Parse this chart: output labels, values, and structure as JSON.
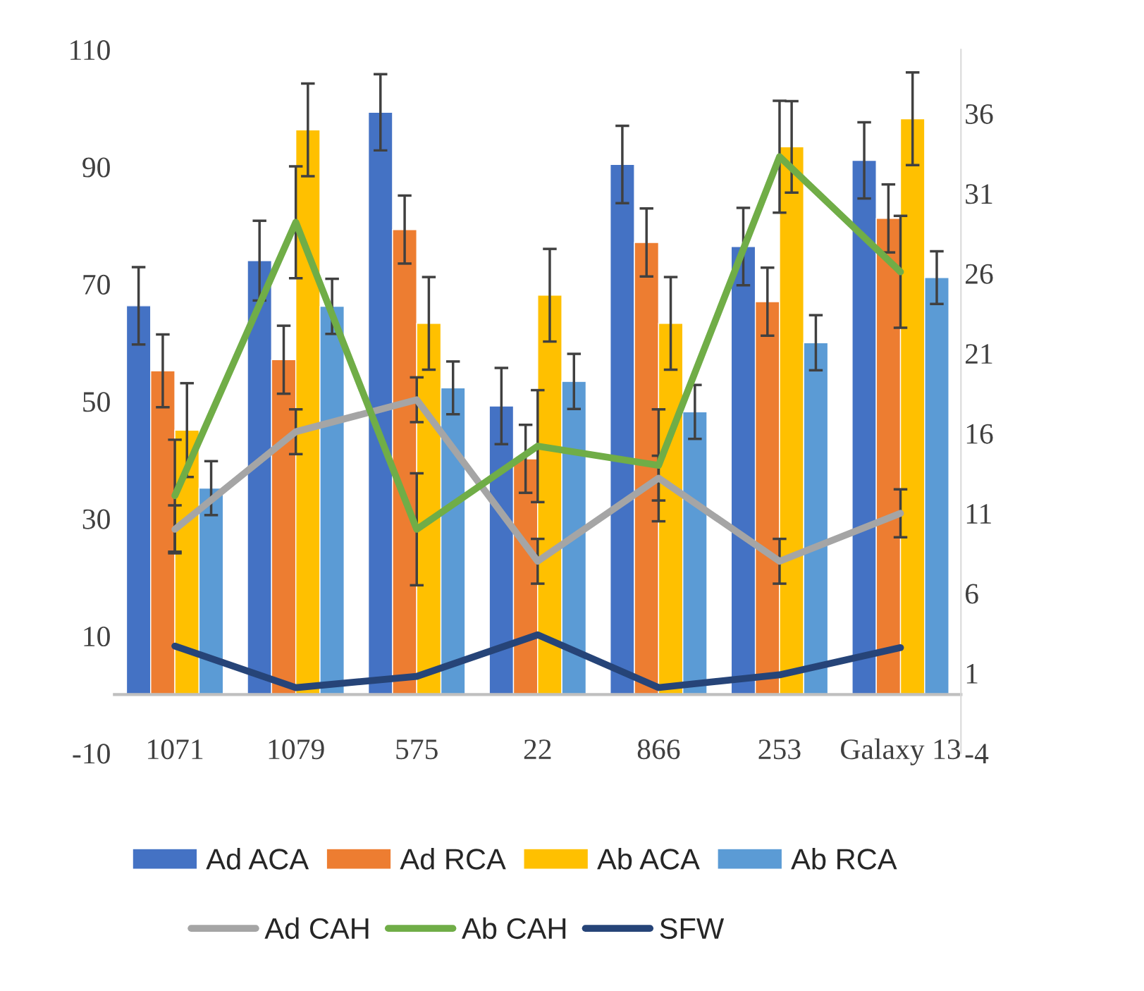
{
  "chart_data": {
    "type": "bar",
    "categories": [
      "1071",
      "1079",
      "575",
      "22",
      "866",
      "253",
      "Galaxy 13"
    ],
    "series": [
      {
        "name": "Ad ACA",
        "color": "#4472c4",
        "values": [
          66.3,
          74.0,
          99.3,
          49.2,
          90.4,
          76.4,
          91.1
        ],
        "errors": [
          6.6,
          6.8,
          6.5,
          6.5,
          6.6,
          6.6,
          6.5
        ]
      },
      {
        "name": "Ad RCA",
        "color": "#ed7d31",
        "values": [
          55.2,
          57.1,
          79.3,
          40.2,
          77.1,
          67.0,
          81.2
        ],
        "errors": [
          6.2,
          5.8,
          5.8,
          5.8,
          5.8,
          5.8,
          5.8
        ]
      },
      {
        "name": "Ab ACA",
        "color": "#ffc000",
        "values": [
          45.1,
          96.3,
          63.3,
          68.1,
          63.3,
          93.4,
          98.2
        ],
        "errors": [
          8.0,
          7.9,
          7.9,
          7.9,
          7.9,
          7.8,
          7.9
        ]
      },
      {
        "name": "Ab RCA",
        "color": "#5b9bd5",
        "values": [
          35.2,
          66.2,
          52.3,
          53.4,
          48.2,
          60.0,
          71.1
        ],
        "errors": [
          4.6,
          4.7,
          4.5,
          4.7,
          4.6,
          4.7,
          4.5
        ]
      },
      {
        "name": "Ad CAH",
        "type": "line",
        "axis": "y2",
        "color": "#a5a5a5",
        "values": [
          10.0,
          16.1,
          18.1,
          8.0,
          13.2,
          8.0,
          11.0
        ],
        "errors": [
          1.5,
          1.4,
          1.4,
          1.4,
          1.4,
          1.4,
          1.5
        ]
      },
      {
        "name": "Ab CAH",
        "type": "line",
        "axis": "y2",
        "color": "#70ad47",
        "values": [
          12.1,
          29.2,
          10.0,
          15.2,
          14.0,
          33.3,
          26.1
        ],
        "errors": [
          3.5,
          3.5,
          3.5,
          3.5,
          3.5,
          3.5,
          3.5
        ]
      },
      {
        "name": "SFW",
        "type": "line",
        "axis": "y2",
        "color": "#264478",
        "values": [
          2.7,
          0.1,
          0.8,
          3.4,
          0.1,
          0.9,
          2.6
        ]
      }
    ],
    "ylim": [
      -10,
      110
    ],
    "yticks": [
      -10,
      10,
      30,
      50,
      70,
      90,
      110
    ],
    "y2lim": [
      -4,
      40
    ],
    "y2ticks": [
      -4,
      1,
      6,
      11,
      16,
      21,
      26,
      31,
      36
    ],
    "grid": false,
    "legend": "bottom",
    "marker": "none",
    "line_style": "solid"
  }
}
